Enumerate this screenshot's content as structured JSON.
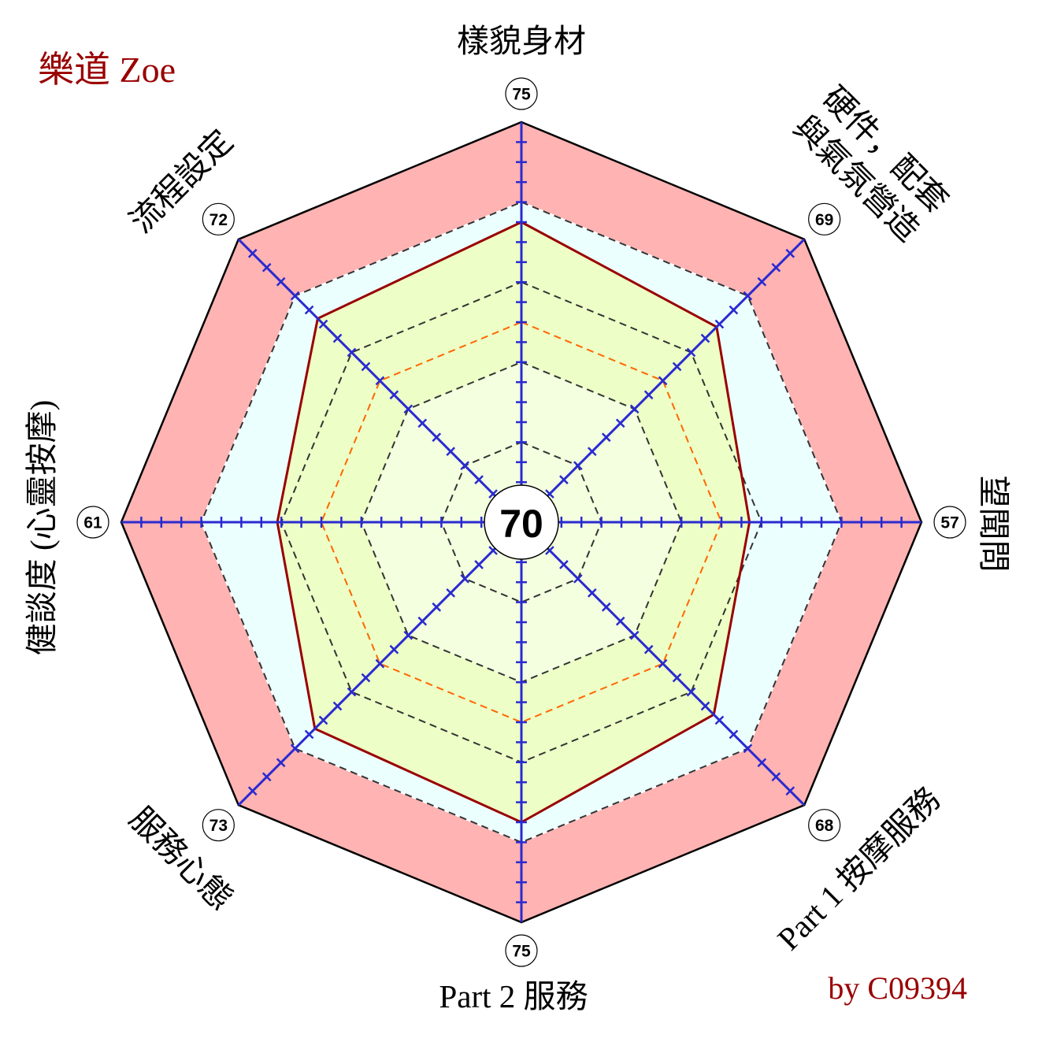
{
  "chart_data": {
    "type": "radar",
    "title": "樂道 Zoe",
    "annotation": "by C09394",
    "center_value": 70,
    "range": [
      0,
      100
    ],
    "tick_step": 5,
    "grid": true,
    "grid_rings": [
      20,
      40,
      60,
      80
    ],
    "highlight_ring": 50,
    "band_threshold": 80,
    "axes": [
      {
        "label": [
          "樣貌身材"
        ],
        "value": 75
      },
      {
        "label": [
          "硬件，配套",
          "與氣氛營造"
        ],
        "value": 69
      },
      {
        "label": [
          "望聞問"
        ],
        "value": 57
      },
      {
        "label": [
          "Part 1 按摩服務"
        ],
        "value": 68
      },
      {
        "label": [
          "Part 2 服務"
        ],
        "value": 75
      },
      {
        "label": [
          "服務心態"
        ],
        "value": 73
      },
      {
        "label": [
          "健談度 (心靈按摩)"
        ],
        "value": 61
      },
      {
        "label": [
          "流程設定"
        ],
        "value": 72
      }
    ],
    "colors": {
      "band_outer": "#ffb3b3",
      "band_inner": "#ebffff",
      "series_fill": "#edffc6",
      "series_fill_inner": "#f3ffdf",
      "series_line": "#990000",
      "axis": "#2a2ad0",
      "grid": "#333333",
      "grid_highlight": "#ff6600",
      "title": "#990000"
    }
  }
}
